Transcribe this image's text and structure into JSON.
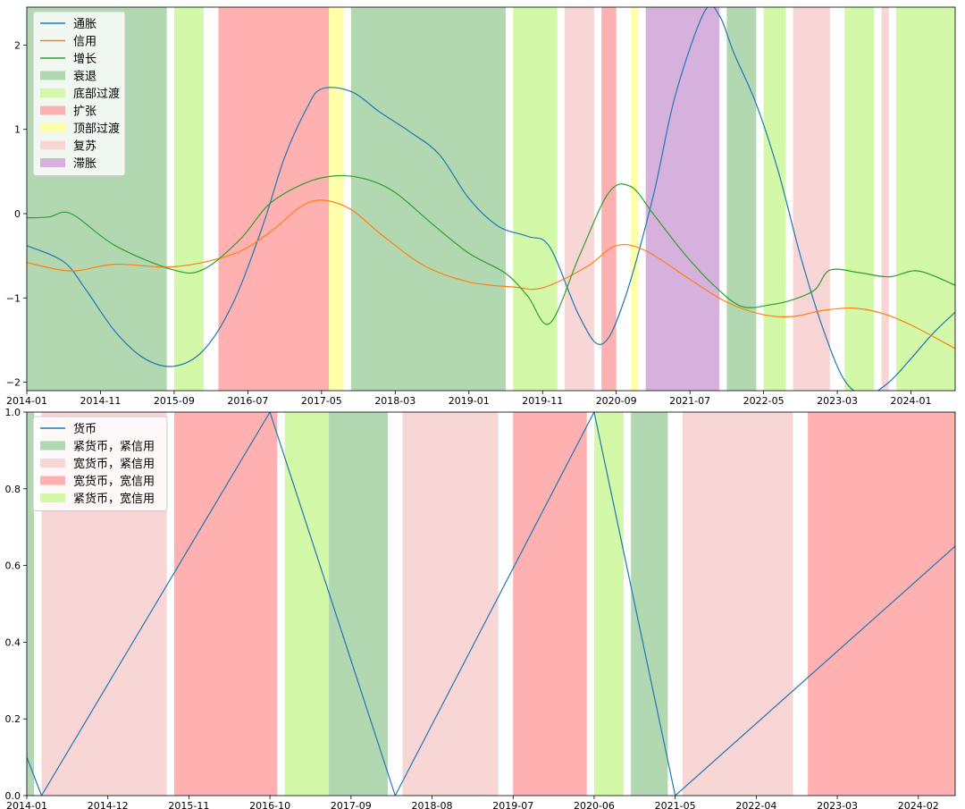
{
  "chart_data": [
    {
      "type": "line",
      "title": "",
      "xlabel": "",
      "ylabel": "",
      "xlim": [
        "2014-01",
        "2024-07"
      ],
      "ylim": [
        -2.1,
        2.45
      ],
      "x_ticks": [
        "2014-01",
        "2014-11",
        "2015-09",
        "2016-07",
        "2017-05",
        "2018-03",
        "2019-01",
        "2019-11",
        "2020-09",
        "2021-07",
        "2022-05",
        "2023-03",
        "2024-01"
      ],
      "y_ticks": [
        -2,
        -1,
        0,
        1,
        2
      ],
      "legend_position": "top-left",
      "series": [
        {
          "name": "通胀",
          "color": "#1f77b4",
          "x": [
            "2014-01",
            "2014-06",
            "2014-09",
            "2015-01",
            "2015-05",
            "2015-09",
            "2016-01",
            "2016-05",
            "2016-09",
            "2016-12",
            "2017-03",
            "2017-05",
            "2017-09",
            "2018-01",
            "2018-05",
            "2018-09",
            "2019-01",
            "2019-05",
            "2019-09",
            "2019-12",
            "2020-04",
            "2020-07",
            "2020-10",
            "2021-02",
            "2021-05",
            "2021-09",
            "2021-11",
            "2022-01",
            "2022-04",
            "2022-07",
            "2022-10",
            "2023-01",
            "2023-04",
            "2023-07",
            "2023-10",
            "2024-01",
            "2024-04",
            "2024-07"
          ],
          "values": [
            -0.38,
            -0.57,
            -0.9,
            -1.4,
            -1.72,
            -1.81,
            -1.62,
            -1.06,
            -0.15,
            0.67,
            1.25,
            1.48,
            1.45,
            1.2,
            0.97,
            0.7,
            0.18,
            -0.15,
            -0.27,
            -0.4,
            -1.22,
            -1.55,
            -1.05,
            0.2,
            1.4,
            2.4,
            2.35,
            1.9,
            1.3,
            0.5,
            -0.5,
            -1.35,
            -1.98,
            -2.15,
            -2.0,
            -1.72,
            -1.42,
            -1.17
          ]
        },
        {
          "name": "信用",
          "color": "#ff7f0e",
          "x": [
            "2014-01",
            "2014-07",
            "2015-01",
            "2015-09",
            "2016-05",
            "2016-10",
            "2017-02",
            "2017-05",
            "2017-09",
            "2018-01",
            "2018-07",
            "2019-01",
            "2019-07",
            "2019-11",
            "2020-05",
            "2020-09",
            "2021-01",
            "2021-07",
            "2021-12",
            "2022-05",
            "2022-09",
            "2023-01",
            "2023-05",
            "2023-09",
            "2024-01",
            "2024-07"
          ],
          "values": [
            -0.58,
            -0.68,
            -0.6,
            -0.63,
            -0.48,
            -0.22,
            0.07,
            0.16,
            0.05,
            -0.24,
            -0.62,
            -0.81,
            -0.87,
            -0.88,
            -0.63,
            -0.38,
            -0.44,
            -0.78,
            -1.05,
            -1.2,
            -1.22,
            -1.15,
            -1.12,
            -1.18,
            -1.32,
            -1.6
          ]
        },
        {
          "name": "增长",
          "color": "#2ca02c",
          "x": [
            "2014-01",
            "2014-04",
            "2014-07",
            "2015-01",
            "2015-09",
            "2016-01",
            "2016-06",
            "2016-10",
            "2017-03",
            "2017-07",
            "2017-11",
            "2018-03",
            "2018-08",
            "2019-01",
            "2019-06",
            "2019-09",
            "2019-12",
            "2020-04",
            "2020-08",
            "2020-11",
            "2021-02",
            "2021-06",
            "2021-10",
            "2022-02",
            "2022-06",
            "2022-09",
            "2022-12",
            "2023-02",
            "2023-06",
            "2023-10",
            "2024-02",
            "2024-07"
          ],
          "values": [
            -0.05,
            -0.04,
            0.0,
            -0.38,
            -0.67,
            -0.66,
            -0.3,
            0.12,
            0.37,
            0.45,
            0.41,
            0.25,
            -0.12,
            -0.47,
            -0.71,
            -0.98,
            -1.3,
            -0.5,
            0.25,
            0.32,
            0.0,
            -0.45,
            -0.83,
            -1.1,
            -1.08,
            -1.02,
            -0.9,
            -0.67,
            -0.7,
            -0.75,
            -0.68,
            -0.85
          ]
        }
      ],
      "bands": [
        {
          "name": "衰退",
          "color": "#b2d8b2",
          "ranges": [
            [
              "2014-01",
              "2015-08"
            ],
            [
              "2017-09",
              "2019-06"
            ],
            [
              "2021-12",
              "2022-04"
            ]
          ]
        },
        {
          "name": "底部过渡",
          "color": "#d3f8a8",
          "ranges": [
            [
              "2015-09",
              "2016-01"
            ],
            [
              "2019-07",
              "2020-01"
            ],
            [
              "2022-05",
              "2022-08"
            ],
            [
              "2023-04",
              "2023-08"
            ],
            [
              "2023-11",
              "2024-07"
            ]
          ]
        },
        {
          "name": "扩张",
          "color": "#ffb0b0",
          "ranges": [
            [
              "2016-03",
              "2017-08"
            ],
            [
              "2020-07",
              "2020-09"
            ]
          ]
        },
        {
          "name": "顶部过渡",
          "color": "#ffffaa",
          "ranges": [
            [
              "2017-06",
              "2017-08"
            ],
            [
              "2020-11",
              "2020-12"
            ]
          ]
        },
        {
          "name": "复苏",
          "color": "#f8d6d6",
          "ranges": [
            [
              "2020-02",
              "2020-06"
            ],
            [
              "2022-09",
              "2023-02"
            ],
            [
              "2023-09",
              "2023-10"
            ]
          ]
        },
        {
          "name": "滞胀",
          "color": "#d7b1dd",
          "ranges": [
            [
              "2021-01",
              "2021-11"
            ]
          ]
        }
      ]
    },
    {
      "type": "line",
      "title": "",
      "xlabel": "",
      "ylabel": "",
      "xlim": [
        "2014-01",
        "2024-07"
      ],
      "ylim": [
        0,
        1.0
      ],
      "x_ticks": [
        "2014-01",
        "2014-12",
        "2015-11",
        "2016-10",
        "2017-09",
        "2018-08",
        "2019-07",
        "2020-06",
        "2021-05",
        "2022-04",
        "2023-03",
        "2024-02"
      ],
      "y_ticks": [
        "0.0",
        "0.2",
        "0.4",
        "0.6",
        "0.8",
        "1.0"
      ],
      "legend_position": "top-left",
      "series": [
        {
          "name": "货币",
          "color": "#1f77b4",
          "x": [
            "2014-01",
            "2014-03",
            "2016-10",
            "2018-03",
            "2020-06",
            "2021-05",
            "2024-07"
          ],
          "values": [
            0.1,
            0.0,
            1.0,
            0.0,
            1.0,
            0.0,
            0.65
          ]
        }
      ],
      "bands": [
        {
          "name": "紧货币，紧信用",
          "color": "#b2d8b2",
          "ranges": [
            [
              "2014-01",
              "2014-02"
            ],
            [
              "2017-03",
              "2018-02"
            ],
            [
              "2020-11",
              "2021-04"
            ]
          ]
        },
        {
          "name": "宽货币，紧信用",
          "color": "#f8d6d6",
          "ranges": [
            [
              "2014-03",
              "2015-08"
            ],
            [
              "2018-04",
              "2019-05"
            ],
            [
              "2021-06",
              "2022-09"
            ]
          ]
        },
        {
          "name": "宽货币，宽信用",
          "color": "#ffb0b0",
          "ranges": [
            [
              "2015-09",
              "2016-11"
            ],
            [
              "2019-07",
              "2020-05"
            ],
            [
              "2022-11",
              "2024-07"
            ]
          ]
        },
        {
          "name": "紧货币，宽信用",
          "color": "#d3f8a8",
          "ranges": [
            [
              "2016-12",
              "2017-06"
            ],
            [
              "2020-06",
              "2020-10"
            ]
          ]
        }
      ]
    }
  ]
}
